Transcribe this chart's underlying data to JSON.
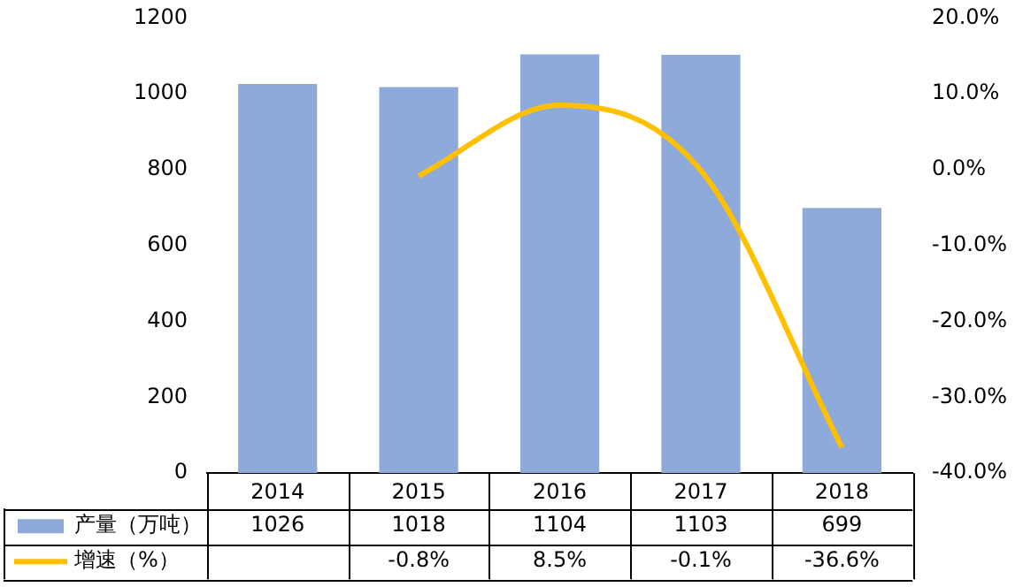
{
  "chart_data": {
    "type": "bar",
    "categories": [
      "2014",
      "2015",
      "2016",
      "2017",
      "2018"
    ],
    "series": [
      {
        "name": "产量（万吨）",
        "color": "#8eaadb",
        "values": [
          1026,
          1018,
          1104,
          1103,
          699
        ],
        "value_labels": [
          "1026",
          "1018",
          "1104",
          "1103",
          "699"
        ]
      },
      {
        "name": "增速（%）",
        "type": "line",
        "axis": "y2",
        "color": "#ffc000",
        "values": [
          null,
          -0.8,
          8.5,
          -0.1,
          -36.6
        ],
        "value_labels": [
          null,
          "-0.8%",
          "8.5%",
          "-0.1%",
          "-36.6%"
        ]
      }
    ],
    "ylim": [
      0,
      1200
    ],
    "yticks": [
      0,
      200,
      400,
      600,
      800,
      1000,
      1200
    ],
    "y2lim": [
      -40,
      20
    ],
    "y2ticks": [
      {
        "value": -40,
        "label": "-40.0%"
      },
      {
        "value": -30,
        "label": "-30.0%"
      },
      {
        "value": -20,
        "label": "-20.0%"
      },
      {
        "value": -10,
        "label": "-10.0%"
      },
      {
        "value": 0,
        "label": "0.0%"
      },
      {
        "value": 10,
        "label": "10.0%"
      },
      {
        "value": 20,
        "label": "20.0%"
      }
    ],
    "grid": false,
    "legend": "bottom",
    "marker": "none",
    "line_style": "solid"
  }
}
